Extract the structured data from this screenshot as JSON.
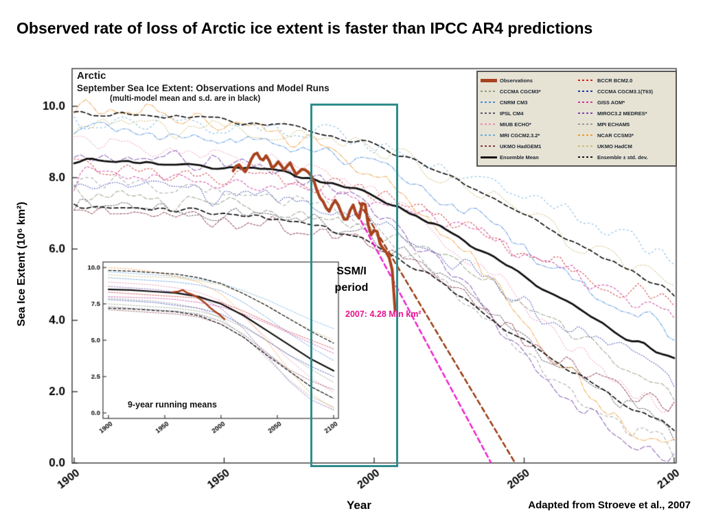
{
  "page": {
    "title": "Observed rate of loss of Arctic ice extent is faster than IPCC AR4 predictions",
    "credit": "Adapted from Stroeve et al., 2007"
  },
  "chart": {
    "header_line1": "Arctic",
    "header_line2": "September Sea Ice Extent: Observations and Model Runs",
    "header_line3": "(multi-model mean and s.d. are in black)",
    "xlabel": "Year",
    "ylabel": "Sea Ice Extent (10⁶ km²)"
  },
  "annotations": {
    "ssmi_line1": "SSM/I",
    "ssmi_line2": "period",
    "obs_2007": "2007: 4.28 Mln km²",
    "inset_label": "9-year running means"
  },
  "chart_data": {
    "type": "line",
    "title": "Arctic",
    "subtitle": "September Sea Ice Extent: Observations and Model Runs",
    "note": "(multi-model mean and s.d. are in black)",
    "xlabel": "Year",
    "ylabel": "Sea Ice Extent (10⁶ km²)",
    "xlim": [
      1900,
      2100
    ],
    "ylim": [
      0,
      11
    ],
    "xticks": [
      "1900",
      "1950",
      "2000",
      "2050",
      "2100"
    ],
    "xtick_values": [
      1900,
      1950,
      2000,
      2050,
      2100
    ],
    "yticks": [
      "0.0",
      "2.0",
      "4.0",
      "6.0",
      "8.0",
      "10.0"
    ],
    "ytick_values": [
      0,
      2,
      4,
      6,
      8,
      10
    ],
    "grid": false,
    "legend_position": "upper right",
    "model_years": [
      1900,
      1920,
      1940,
      1960,
      1980,
      2000,
      2020,
      2040,
      2060,
      2080,
      2100
    ],
    "models": [
      {
        "name": "BCCR BCM2.0",
        "color": "#cc2222",
        "values": [
          8.3,
          8.2,
          8.1,
          8.0,
          7.9,
          7.6,
          7.0,
          6.3,
          5.6,
          5.0,
          4.4
        ]
      },
      {
        "name": "CCCMA CGCM3*",
        "color": "#8a9a7a",
        "values": [
          7.5,
          7.4,
          7.3,
          7.2,
          7.0,
          6.6,
          5.9,
          5.0,
          4.0,
          3.0,
          2.1
        ]
      },
      {
        "name": "CCCMA CGCM3.1(T63)",
        "color": "#2233aa",
        "values": [
          7.8,
          7.7,
          7.6,
          7.4,
          7.2,
          6.8,
          6.0,
          5.0,
          4.0,
          3.2,
          2.5
        ]
      },
      {
        "name": "CNRM CM3",
        "color": "#4488dd",
        "values": [
          9.3,
          9.2,
          9.1,
          9.0,
          8.8,
          8.4,
          7.6,
          6.6,
          5.5,
          4.5,
          3.6
        ]
      },
      {
        "name": "GISS AOM*",
        "color": "#cc3399",
        "values": [
          8.0,
          7.95,
          7.9,
          7.8,
          7.6,
          7.3,
          6.8,
          6.2,
          5.5,
          4.8,
          4.1
        ]
      },
      {
        "name": "IPSL CM4",
        "color": "#555566",
        "values": [
          7.3,
          7.2,
          7.1,
          7.0,
          6.8,
          6.3,
          5.4,
          4.2,
          2.9,
          1.8,
          1.0
        ]
      },
      {
        "name": "MIROC3.2 MEDRES*",
        "color": "#7744aa",
        "values": [
          8.7,
          8.6,
          8.5,
          8.3,
          8.0,
          7.2,
          5.8,
          4.0,
          2.2,
          0.9,
          0.2
        ]
      },
      {
        "name": "MIUB ECHO*",
        "color": "#ee88aa",
        "values": [
          9.0,
          8.9,
          8.8,
          8.6,
          8.3,
          7.7,
          6.6,
          5.2,
          3.7,
          2.4,
          1.4
        ]
      },
      {
        "name": "MPI ECHAM5",
        "color": "#999999",
        "values": [
          7.9,
          7.8,
          7.7,
          7.5,
          7.2,
          6.5,
          5.3,
          3.8,
          2.3,
          1.1,
          0.4
        ]
      },
      {
        "name": "MRI CGCM2.3.2*",
        "color": "#66aadd",
        "values": [
          9.7,
          9.6,
          9.5,
          9.4,
          9.2,
          8.9,
          8.4,
          7.8,
          7.1,
          6.4,
          5.8
        ]
      },
      {
        "name": "NCAR CCSM3*",
        "color": "#ee9933",
        "values": [
          10.0,
          9.9,
          9.7,
          9.4,
          9.0,
          8.2,
          6.8,
          5.0,
          3.0,
          1.3,
          0.3
        ]
      },
      {
        "name": "UKMO HadGEM1",
        "color": "#883344",
        "values": [
          7.1,
          7.0,
          6.9,
          6.8,
          6.6,
          6.1,
          5.2,
          4.1,
          3.0,
          2.2,
          1.6
        ]
      },
      {
        "name": "UKMO HadCM",
        "color": "#ccbb77",
        "values": [
          9.5,
          9.4,
          9.35,
          9.3,
          9.1,
          8.8,
          8.2,
          7.4,
          6.5,
          5.7,
          5.0
        ]
      }
    ],
    "ensemble_mean": {
      "name": "Ensemble Mean",
      "color": "#111111",
      "values": [
        8.5,
        8.45,
        8.35,
        8.25,
        8.0,
        7.5,
        6.7,
        5.7,
        4.7,
        3.7,
        2.9
      ]
    },
    "ensemble_std_upper": {
      "name": "Ensemble + std. dev.",
      "color": "#111111",
      "values": [
        9.8,
        9.75,
        9.65,
        9.55,
        9.3,
        8.9,
        8.2,
        7.4,
        6.5,
        5.6,
        4.8
      ]
    },
    "ensemble_std_lower": {
      "name": "Ensemble - std. dev.",
      "color": "#111111",
      "values": [
        7.2,
        7.15,
        7.05,
        6.95,
        6.7,
        6.1,
        5.2,
        4.0,
        2.9,
        1.8,
        1.0
      ]
    },
    "observations": {
      "name": "Observations",
      "color": "#a8431f",
      "points": [
        [
          1953,
          8.15
        ],
        [
          1955,
          8.45
        ],
        [
          1957,
          8.1
        ],
        [
          1959,
          8.5
        ],
        [
          1961,
          8.75
        ],
        [
          1963,
          8.3
        ],
        [
          1964,
          8.75
        ],
        [
          1966,
          8.2
        ],
        [
          1968,
          8.55
        ],
        [
          1970,
          8.1
        ],
        [
          1972,
          8.5
        ],
        [
          1974,
          8.05
        ],
        [
          1976,
          8.3
        ],
        [
          1978,
          8.25
        ],
        [
          1980,
          7.85
        ],
        [
          1982,
          7.45
        ],
        [
          1984,
          7.2
        ],
        [
          1985,
          6.9
        ],
        [
          1987,
          7.5
        ],
        [
          1989,
          7.05
        ],
        [
          1991,
          6.55
        ],
        [
          1992,
          7.2
        ],
        [
          1994,
          7.2
        ],
        [
          1995,
          6.15
        ],
        [
          1996,
          7.9
        ],
        [
          1998,
          6.6
        ],
        [
          1999,
          6.25
        ],
        [
          2001,
          6.75
        ],
        [
          2002,
          5.95
        ],
        [
          2004,
          6.05
        ],
        [
          2005,
          5.55
        ],
        [
          2006,
          5.9
        ],
        [
          2007,
          4.28
        ]
      ]
    },
    "observation_2007": {
      "year": 2007,
      "value": 4.28,
      "label": "2007: 4.28 Mln km²"
    },
    "extrapolations": [
      {
        "name": "observed-trend-magenta",
        "color": "#ee22cc",
        "from": [
          1993,
          7.2
        ],
        "to": [
          2039,
          0
        ]
      },
      {
        "name": "observed-trend-brown",
        "color": "#9a3b10",
        "from": [
          1995,
          7.3
        ],
        "to": [
          2047,
          0
        ]
      }
    ],
    "ssmi_window": {
      "label": "SSM/I period",
      "x0": 1979,
      "x1": 2008
    },
    "inset": {
      "title": "9-year running means",
      "xticks": [
        "1900",
        "1950",
        "2000",
        "2050",
        "2100"
      ],
      "xtick_values": [
        1900,
        1950,
        2000,
        2050,
        2100
      ],
      "yticks": [
        "0.0",
        "2.5",
        "5.0",
        "7.5",
        "10.0"
      ],
      "ytick_values": [
        0,
        2.5,
        5,
        7.5,
        10
      ],
      "observations_smoothed": [
        [
          1957,
          8.3
        ],
        [
          1962,
          8.35
        ],
        [
          1966,
          8.45
        ],
        [
          1970,
          8.25
        ],
        [
          1974,
          8.15
        ],
        [
          1978,
          8.0
        ],
        [
          1982,
          7.8
        ],
        [
          1986,
          7.55
        ],
        [
          1990,
          7.25
        ],
        [
          1994,
          7.0
        ],
        [
          1998,
          6.8
        ],
        [
          2003,
          6.45
        ]
      ]
    },
    "legend": {
      "columns": [
        [
          {
            "label": "Observations",
            "color": "#a8431f",
            "style": "solid",
            "thick": 5
          },
          {
            "label": "CCCMA CGCM3*",
            "color": "#8a9a7a",
            "style": "dashed"
          },
          {
            "label": "CNRM CM3",
            "color": "#4488dd",
            "style": "dashed"
          },
          {
            "label": "IPSL CM4",
            "color": "#555566",
            "style": "dashed"
          },
          {
            "label": "MIUB ECHO*",
            "color": "#ee88aa",
            "style": "dashed"
          },
          {
            "label": "MRI CGCM2.3.2*",
            "color": "#66aadd",
            "style": "dashed"
          },
          {
            "label": "UKMO HadGEM1",
            "color": "#883344",
            "style": "dashed"
          },
          {
            "label": "Ensemble Mean",
            "color": "#111111",
            "style": "solid",
            "thick": 3
          }
        ],
        [
          {
            "label": "BCCR BCM2.0",
            "color": "#cc2222",
            "style": "dashed"
          },
          {
            "label": "CCCMA CGCM3.1(T63)",
            "color": "#2233aa",
            "style": "dashed"
          },
          {
            "label": "GISS AOM*",
            "color": "#cc3399",
            "style": "dashed"
          },
          {
            "label": "MIROC3.2 MEDRES*",
            "color": "#7744aa",
            "style": "dashed"
          },
          {
            "label": "MPI ECHAM5",
            "color": "#999999",
            "style": "dashed"
          },
          {
            "label": "NCAR CCSM3*",
            "color": "#ee9933",
            "style": "dashed"
          },
          {
            "label": "UKMO HadCM",
            "color": "#ccbb77",
            "style": "dashed"
          },
          {
            "label": "Ensemble ± std. dev.",
            "color": "#111111",
            "style": "dashed"
          }
        ]
      ]
    }
  }
}
